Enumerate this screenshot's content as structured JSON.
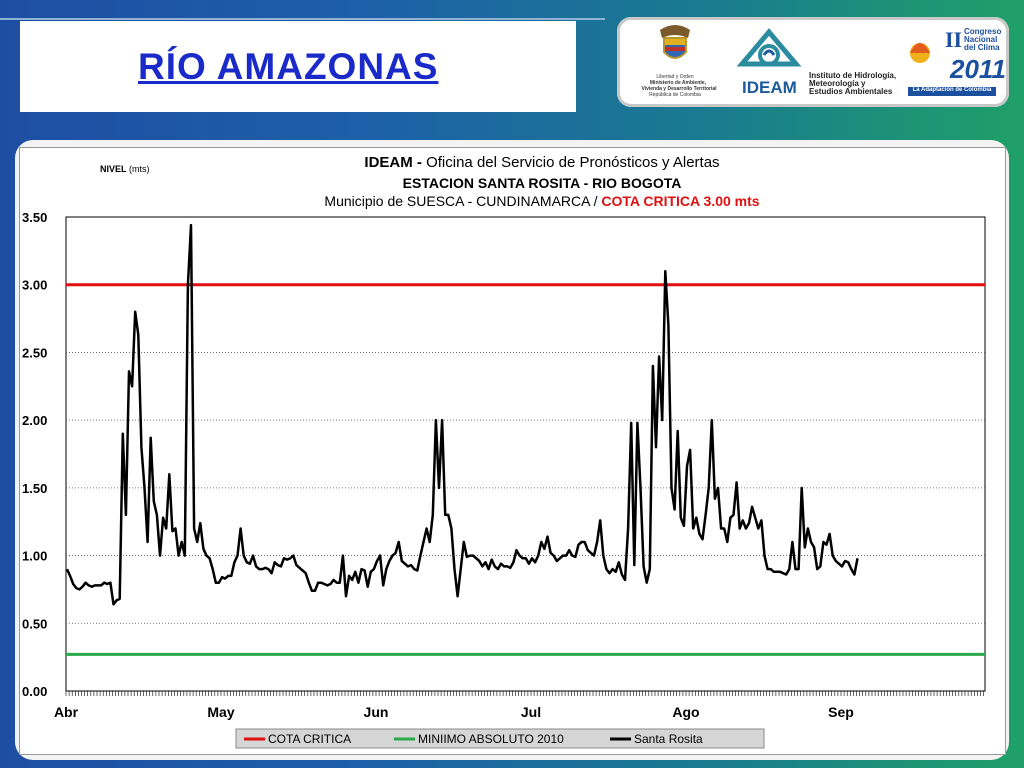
{
  "slide": {
    "title": "RÍO  AMAZONAS"
  },
  "logos": {
    "shield_caption": [
      "Libertad y Orden",
      "Ministerio de Ambiente,",
      "Vivienda y Desarrollo Territorial",
      "República de Colombia"
    ],
    "ideam_name": "IDEAM",
    "ideam_subtitle": [
      "Instituto de Hidrología,",
      "Meteorología y",
      "Estudios Ambientales"
    ],
    "congreso": {
      "line1": "Congreso",
      "line2": "Nacional",
      "line3": "del Clima",
      "year": "2011",
      "roman": "II",
      "tagline": "La Adaptación de Colombia"
    }
  },
  "colors": {
    "critical": "#e11010",
    "minimum": "#2aa84a",
    "series": "#000000"
  },
  "chart_data": {
    "type": "line",
    "title_prefix": "IDEAM - ",
    "title_main": "Oficina del Servicio de Pronósticos y Alertas",
    "subtitle": "ESTACION SANTA ROSITA - RIO BOGOTA",
    "location": "Municipio de SUESCA - CUNDINAMARCA  /  ",
    "critical_note": "COTA CRITICA 3.00 mts",
    "ylabel_bold": "NIVEL",
    "ylabel_unit": " (mts)",
    "ylim": [
      0,
      3.5
    ],
    "yticks": [
      "0.00",
      "0.50",
      "1.00",
      "1.50",
      "2.00",
      "2.50",
      "3.00",
      "3.50"
    ],
    "xticks": [
      "Abr",
      "May",
      "Jun",
      "Jul",
      "Ago",
      "Sep"
    ],
    "legend": [
      "COTA CRITICA",
      "MINIIMO ABSOLUTO 2010",
      "Santa Rosita"
    ],
    "thresholds": {
      "critical": 3.0,
      "minimum": 0.27
    },
    "series": [
      {
        "name": "Santa Rosita",
        "days_start": "Abr 1",
        "values": [
          0.9,
          0.85,
          0.79,
          0.76,
          0.75,
          0.77,
          0.8,
          0.78,
          0.77,
          0.78,
          0.78,
          0.78,
          0.8,
          0.79,
          0.8,
          0.64,
          0.67,
          0.68,
          1.9,
          1.3,
          2.36,
          2.25,
          2.8,
          2.63,
          1.8,
          1.5,
          1.1,
          1.87,
          1.4,
          1.3,
          1.0,
          1.28,
          1.2,
          1.6,
          1.18,
          1.2,
          1.0,
          1.1,
          1.0,
          3.0,
          3.44,
          1.2,
          1.1,
          1.24,
          1.05,
          1.0,
          0.98,
          0.9,
          0.8,
          0.8,
          0.84,
          0.83,
          0.85,
          0.85,
          0.95,
          1.0,
          1.2,
          1.0,
          0.95,
          0.94,
          1.0,
          0.92,
          0.9,
          0.9,
          0.91,
          0.9,
          0.87,
          0.95,
          0.93,
          0.92,
          0.98,
          0.97,
          0.98,
          1.0,
          0.93,
          0.91,
          0.89,
          0.87,
          0.8,
          0.74,
          0.74,
          0.8,
          0.8,
          0.79,
          0.78,
          0.79,
          0.82,
          0.8,
          0.8,
          1.0,
          0.7,
          0.85,
          0.82,
          0.88,
          0.8,
          0.9,
          0.89,
          0.77,
          0.88,
          0.9,
          0.96,
          1.0,
          0.78,
          0.9,
          0.96,
          1.0,
          1.02,
          1.1,
          0.96,
          0.94,
          0.92,
          0.93,
          0.9,
          0.89,
          1.0,
          1.1,
          1.2,
          1.1,
          1.3,
          2.0,
          1.5,
          2.0,
          1.3,
          1.3,
          1.2,
          0.9,
          0.7,
          0.9,
          1.1,
          0.99,
          1.0,
          1.0,
          0.98,
          0.96,
          0.92,
          0.95,
          0.9,
          0.97,
          0.92,
          0.9,
          0.94,
          0.92,
          0.92,
          0.91,
          0.95,
          1.04,
          1.0,
          0.98,
          0.98,
          0.94,
          0.98,
          0.95,
          1.0,
          1.1,
          1.05,
          1.14,
          1.02,
          1.0,
          0.96,
          0.98,
          1.0,
          1.0,
          1.04,
          1.0,
          0.99,
          1.08,
          1.1,
          1.1,
          1.04,
          1.02,
          1.0,
          1.1,
          1.26,
          1.0,
          0.9,
          0.87,
          0.9,
          0.88,
          0.95,
          0.86,
          0.82,
          1.2,
          1.98,
          0.93,
          1.98,
          1.5,
          0.92,
          0.8,
          0.9,
          2.4,
          1.8,
          2.47,
          2.0,
          3.1,
          2.7,
          1.5,
          1.34,
          1.92,
          1.28,
          1.22,
          1.66,
          1.78,
          1.2,
          1.28,
          1.16,
          1.12,
          1.3,
          1.5,
          2.0,
          1.42,
          1.5,
          1.2,
          1.2,
          1.1,
          1.28,
          1.3,
          1.54,
          1.2,
          1.26,
          1.2,
          1.24,
          1.36,
          1.28,
          1.2,
          1.26,
          1.0,
          0.9,
          0.9,
          0.88,
          0.88,
          0.88,
          0.87,
          0.86,
          0.9,
          1.1,
          0.9,
          0.9,
          1.5,
          1.06,
          1.2,
          1.1,
          1.06,
          0.9,
          0.92,
          1.1,
          1.08,
          1.16,
          1.0,
          0.96,
          0.94,
          0.92,
          0.96,
          0.95,
          0.9,
          0.86,
          0.98
        ]
      }
    ]
  }
}
